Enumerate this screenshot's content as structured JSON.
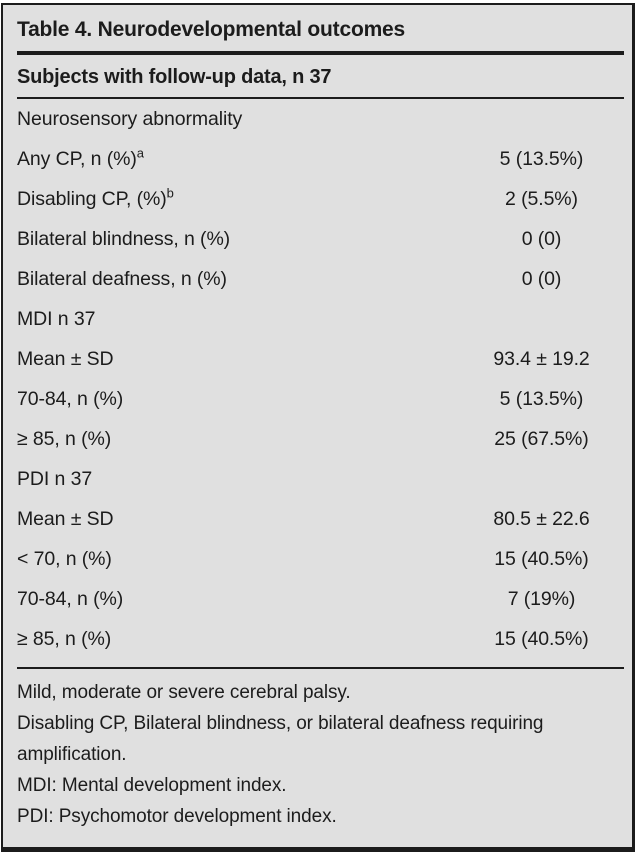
{
  "table": {
    "title": "Table 4. Neurodevelopmental outcomes",
    "subtitle": "Subjects with follow-up data, n 37",
    "rows": [
      {
        "label": "Neurosensory abnormality",
        "sup": "",
        "value": ""
      },
      {
        "label": "Any CP, n (%)",
        "sup": "a",
        "value": "5 (13.5%)"
      },
      {
        "label": "Disabling CP, (%)",
        "sup": "b",
        "value": "2 (5.5%)"
      },
      {
        "label": "Bilateral blindness, n (%)",
        "sup": "",
        "value": "0 (0)"
      },
      {
        "label": "Bilateral deafness, n (%)",
        "sup": "",
        "value": "0 (0)"
      },
      {
        "label": "MDI n 37",
        "sup": "",
        "value": ""
      },
      {
        "label": "Mean ± SD",
        "sup": "",
        "value": "93.4 ± 19.2"
      },
      {
        "label": "70-84, n (%)",
        "sup": "",
        "value": "5 (13.5%)"
      },
      {
        "label": "≥ 85, n (%)",
        "sup": "",
        "value": "25 (67.5%)"
      },
      {
        "label": "PDI n 37",
        "sup": "",
        "value": ""
      },
      {
        "label": "Mean ± SD",
        "sup": "",
        "value": "80.5 ± 22.6"
      },
      {
        "label": "< 70, n (%)",
        "sup": "",
        "value": "15 (40.5%)"
      },
      {
        "label": "70-84, n (%)",
        "sup": "",
        "value": "7 (19%)"
      },
      {
        "label": "≥ 85, n (%)",
        "sup": "",
        "value": "15 (40.5%)"
      }
    ],
    "footnotes": [
      "Mild, moderate or severe cerebral palsy.",
      "Disabling CP, Bilateral blindness, or bilateral deafness requiring amplification.",
      "MDI: Mental development index.",
      "PDI: Psychomotor development index."
    ],
    "colors": {
      "background": "#e0e0e0",
      "text": "#1c1c1c",
      "rule": "#1c1c1c",
      "page": "#ffffff"
    }
  }
}
